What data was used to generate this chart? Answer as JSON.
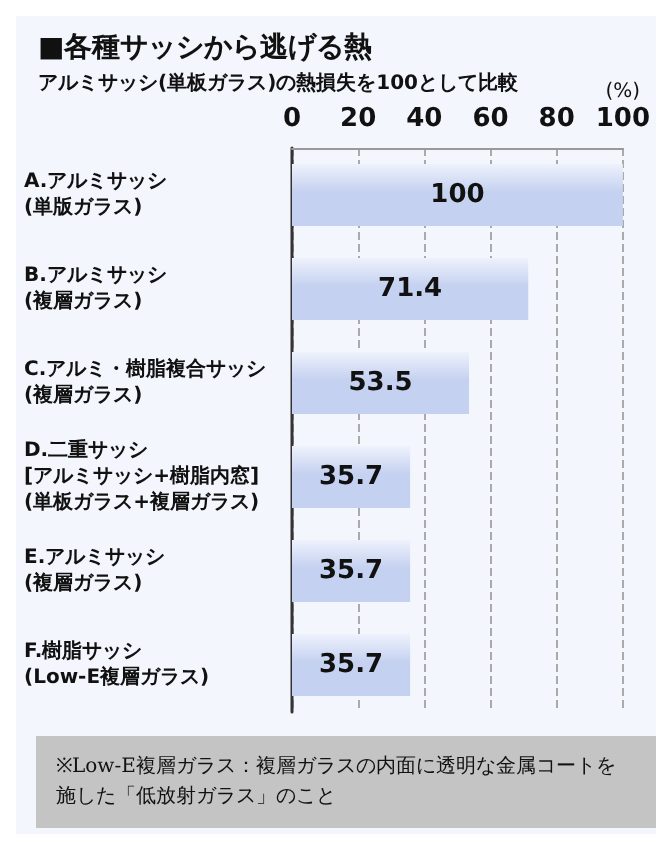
{
  "chart_data": {
    "type": "bar",
    "orientation": "horizontal",
    "title": "■各種サッシから逃げる熱",
    "subtitle": "アルミサッシ(単板ガラス)の熱損失を100として比較",
    "xlabel": "(%)",
    "categories": [
      "A.アルミサッシ\n(単版ガラス)",
      "B.アルミサッシ\n(複層ガラス)",
      "C.アルミ・樹脂複合サッシ\n(複層ガラス)",
      "D.二重サッシ\n[アルミサッシ+樹脂内窓]\n(単板ガラス+複層ガラス)",
      "E.アルミサッシ\n(複層ガラス)",
      "F.樹脂サッシ\n(Low-E複層ガラス)"
    ],
    "values": [
      100,
      71.4,
      53.5,
      35.7,
      35.7,
      35.7
    ],
    "color": "#c5d1f0",
    "xlim": [
      0,
      100
    ],
    "xticks": [
      0,
      20,
      40,
      60,
      80,
      100
    ],
    "grid": "x",
    "data_labels": true,
    "annotations": [
      "※Low-E複層ガラス：複層ガラスの内面に透明な金属コートを施した「低放射ガラス」のこと"
    ]
  }
}
